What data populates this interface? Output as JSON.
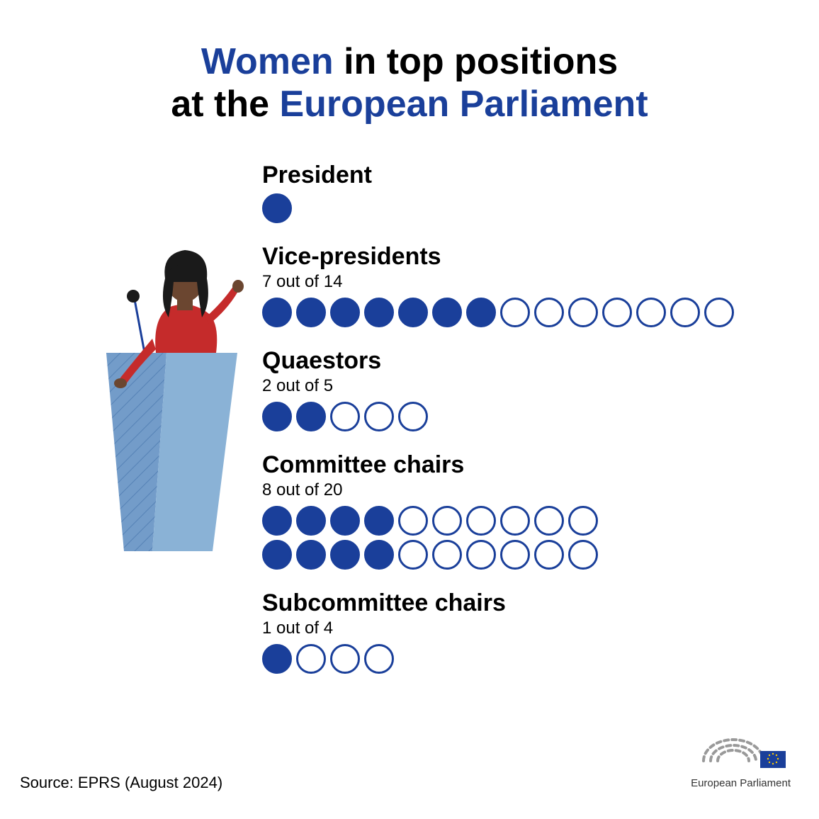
{
  "title": {
    "segments": [
      {
        "text": "Women",
        "highlight": true
      },
      {
        "text": " in top positions",
        "highlight": false
      },
      {
        "text": "\n",
        "highlight": false
      },
      {
        "text": "at the ",
        "highlight": false
      },
      {
        "text": "European Parliament",
        "highlight": true
      }
    ]
  },
  "colors": {
    "accent": "#1a3f9a",
    "text": "#000000",
    "background": "#ffffff",
    "podium_light": "#8ab2d6",
    "podium_dark": "#5a8bc0",
    "skin": "#6b4630",
    "hair": "#1a1a1a",
    "shirt": "#c52b2b"
  },
  "dot_size": 42,
  "categories": [
    {
      "label": "President",
      "subtitle": null,
      "filled": 1,
      "total": 1,
      "per_row": 14
    },
    {
      "label": "Vice-presidents",
      "subtitle": "7 out of 14",
      "filled": 7,
      "total": 14,
      "per_row": 14
    },
    {
      "label": "Quaestors",
      "subtitle": "2 out of 5",
      "filled": 2,
      "total": 5,
      "per_row": 14
    },
    {
      "label": "Committee chairs",
      "subtitle": "8 out of 20",
      "filled": 8,
      "total": 20,
      "per_row": 10
    },
    {
      "label": "Subcommittee chairs",
      "subtitle": "1 out of 4",
      "filled": 1,
      "total": 4,
      "per_row": 14
    }
  ],
  "footer": {
    "source": "Source: EPRS (August 2024)",
    "logo_caption": "European Parliament"
  }
}
